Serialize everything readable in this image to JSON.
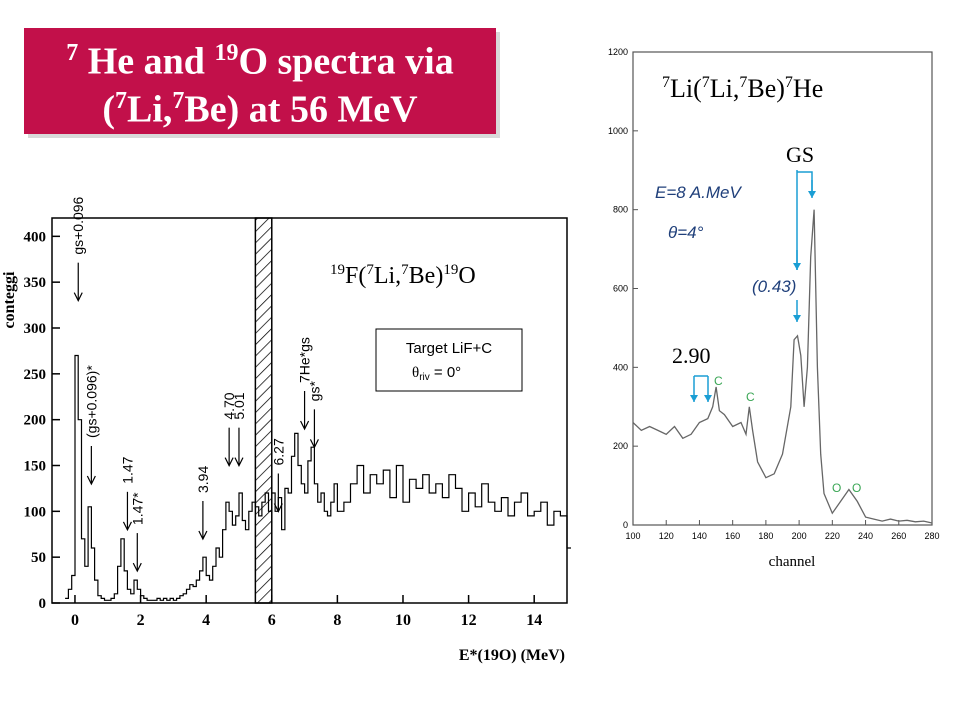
{
  "slide": {
    "title_line1_mass7": "7",
    "title_line1_a": " He and ",
    "title_line1_mass19": "19",
    "title_line1_b": "O spectra via",
    "title_line2_a": "(",
    "title_line2_mass7a": "7",
    "title_line2_b": "Li,",
    "title_line2_mass7b": "7",
    "title_line2_c": "Be) at 56 MeV",
    "title_color": "#c2104a"
  },
  "chart_data": [
    {
      "type": "line",
      "title_reaction": {
        "m1": "19",
        "a": "F(",
        "m2": "7",
        "b": "Li,",
        "m3": "7",
        "c": "Be)",
        "m4": "19",
        "d": "O"
      },
      "ylabel": "conteggi",
      "xlabel": "E*(19O) (MeV)",
      "xlim": [
        -0.7,
        15
      ],
      "ylim": [
        0,
        420
      ],
      "xticks": [
        "0",
        "2",
        "4",
        "6",
        "8",
        "10",
        "12",
        "14"
      ],
      "xtick_values": [
        0,
        2,
        4,
        6,
        8,
        10,
        12,
        14
      ],
      "yticks": [
        "0",
        "50",
        "100",
        "150",
        "200",
        "250",
        "300",
        "350",
        "400"
      ],
      "ytick_values": [
        0,
        50,
        100,
        150,
        200,
        250,
        300,
        350,
        400
      ],
      "legend_box": {
        "line1": "Target LiF+C",
        "line2_sym": "θ",
        "line2_sub": "riv",
        "line2_rest": " = 0°"
      },
      "hatched_region": [
        5.5,
        6.0
      ],
      "x": [
        -0.3,
        -0.2,
        -0.1,
        0,
        0.1,
        0.2,
        0.3,
        0.4,
        0.5,
        0.6,
        0.7,
        0.8,
        0.9,
        1,
        1.1,
        1.2,
        1.3,
        1.4,
        1.5,
        1.6,
        1.7,
        1.8,
        1.9,
        2,
        2.1,
        2.2,
        2.3,
        2.4,
        2.5,
        2.6,
        2.7,
        2.8,
        2.9,
        3,
        3.1,
        3.2,
        3.3,
        3.4,
        3.5,
        3.6,
        3.7,
        3.8,
        3.9,
        4,
        4.1,
        4.2,
        4.3,
        4.4,
        4.5,
        4.6,
        4.7,
        4.8,
        4.9,
        5,
        5.1,
        5.2,
        5.3,
        5.4,
        5.5,
        5.6,
        5.7,
        5.8,
        5.9,
        6,
        6.1,
        6.2,
        6.3,
        6.4,
        6.5,
        6.6,
        6.7,
        6.8,
        6.9,
        7,
        7.1,
        7.2,
        7.3,
        7.4,
        7.5,
        7.6,
        7.7,
        7.8,
        7.9,
        8,
        8.2,
        8.4,
        8.6,
        8.8,
        9,
        9.2,
        9.4,
        9.6,
        9.8,
        10,
        10.2,
        10.4,
        10.6,
        10.8,
        11,
        11.2,
        11.4,
        11.6,
        11.8,
        12,
        12.2,
        12.4,
        12.6,
        12.8,
        13,
        13.2,
        13.4,
        13.6,
        13.8,
        14,
        14.2,
        14.4,
        14.6,
        14.8,
        15
      ],
      "y": [
        5,
        15,
        30,
        270,
        200,
        70,
        40,
        105,
        60,
        25,
        8,
        5,
        3,
        3,
        5,
        10,
        40,
        70,
        35,
        15,
        10,
        25,
        15,
        8,
        5,
        3,
        3,
        3,
        5,
        3,
        5,
        3,
        5,
        3,
        5,
        8,
        10,
        15,
        20,
        18,
        25,
        35,
        50,
        30,
        25,
        40,
        60,
        50,
        80,
        110,
        100,
        85,
        95,
        120,
        90,
        80,
        100,
        110,
        105,
        95,
        110,
        120,
        100,
        120,
        100,
        115,
        80,
        125,
        120,
        160,
        185,
        150,
        130,
        120,
        155,
        170,
        130,
        110,
        120,
        100,
        95,
        110,
        130,
        100,
        110,
        130,
        150,
        120,
        140,
        130,
        145,
        115,
        150,
        110,
        135,
        125,
        140,
        120,
        130,
        115,
        140,
        125,
        100,
        120,
        105,
        130,
        110,
        100,
        115,
        95,
        110,
        120,
        95,
        100,
        110,
        85,
        100,
        95,
        60
      ],
      "peak_labels": [
        {
          "text": "gs+0.096",
          "x": 0.1,
          "y": 380
        },
        {
          "text": "(gs+0.096)*",
          "x": 0.5,
          "y": 180
        },
        {
          "text": "1.47",
          "x": 1.6,
          "y": 130
        },
        {
          "text": "1.47*",
          "x": 1.9,
          "y": 85
        },
        {
          "text": "3.94",
          "x": 3.9,
          "y": 120
        },
        {
          "text": "4.70",
          "x": 4.7,
          "y": 200
        },
        {
          "text": "5.01",
          "x": 5.0,
          "y": 200
        },
        {
          "text": "6.27",
          "x": 6.2,
          "y": 150
        },
        {
          "text": "7He*gs",
          "x": 7.0,
          "y": 240
        },
        {
          "text": "gs*",
          "x": 7.3,
          "y": 220
        }
      ]
    },
    {
      "type": "line",
      "title_reaction": {
        "m1": "7",
        "a": "Li(",
        "m2": "7",
        "b": "Li,",
        "m3": "7",
        "c": "Be)",
        "m4": "7",
        "d": "He"
      },
      "xlabel": "channel",
      "xlim": [
        100,
        280
      ],
      "ylim": [
        0,
        1200
      ],
      "xticks": [
        "100",
        "120",
        "140",
        "160",
        "180",
        "200",
        "220",
        "240",
        "260",
        "280"
      ],
      "xtick_values": [
        100,
        120,
        140,
        160,
        180,
        200,
        220,
        240,
        260,
        280
      ],
      "yticks": [
        "0",
        "200",
        "400",
        "600",
        "800",
        "1000",
        "1200"
      ],
      "ytick_values": [
        0,
        200,
        400,
        600,
        800,
        1000,
        1200
      ],
      "annotation_energy": "E=8 A.MeV",
      "annotation_theta_sym": "θ",
      "annotation_theta_rest": "=4°",
      "label_gs": "GS",
      "label_043": "(0.43)",
      "label_290": "2.90",
      "c_labels": [
        "C",
        "C"
      ],
      "o_labels": [
        "O",
        "O"
      ],
      "x": [
        100,
        105,
        110,
        115,
        120,
        125,
        130,
        135,
        140,
        145,
        148,
        150,
        152,
        155,
        160,
        165,
        168,
        170,
        172,
        175,
        180,
        185,
        190,
        195,
        197,
        199,
        201,
        203,
        205,
        207,
        209,
        211,
        213,
        215,
        220,
        225,
        230,
        235,
        240,
        245,
        250,
        255,
        260,
        265,
        270,
        275,
        280
      ],
      "y": [
        260,
        240,
        250,
        240,
        230,
        250,
        220,
        230,
        260,
        270,
        300,
        350,
        290,
        280,
        250,
        260,
        230,
        300,
        240,
        160,
        120,
        130,
        180,
        300,
        470,
        480,
        430,
        300,
        400,
        680,
        800,
        400,
        180,
        80,
        30,
        60,
        90,
        60,
        20,
        15,
        10,
        15,
        10,
        12,
        8,
        10,
        5
      ]
    }
  ]
}
